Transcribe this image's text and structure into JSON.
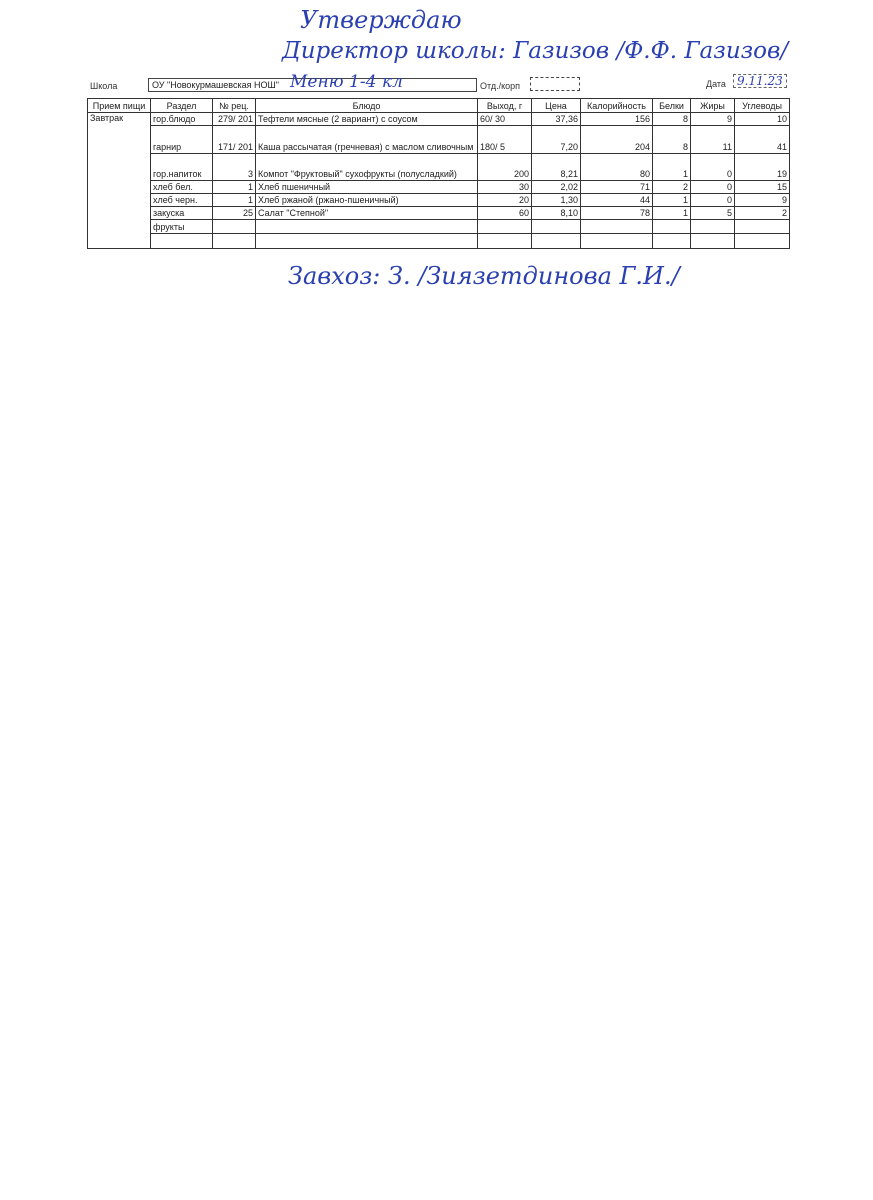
{
  "approval": {
    "title": "Утверждаю",
    "director_line": "Директор школы: Газизов /Ф.Ф. Газизов/"
  },
  "header": {
    "school_label": "Школа",
    "school_value": "ОУ \"Новокурмашевская НОШ\"",
    "menu_note": "Меню 1-4 кл",
    "dept_label": "Отд./корп",
    "dept_value": "",
    "date_label": "Дата",
    "date_value": "9.11.23"
  },
  "table": {
    "columns": [
      "Прием пищи",
      "Раздел",
      "№ рец.",
      "Блюдо",
      "Выход, г",
      "Цена",
      "Калорийность",
      "Белки",
      "Жиры",
      "Углеводы"
    ],
    "meal": "Завтрак",
    "rows": [
      [
        "гор.блюдо",
        "279/ 201",
        "Тефтели мясные (2 вариант) с соусом",
        "60/ 30",
        "37,36",
        "156",
        "8",
        "9",
        "10"
      ],
      [
        "гарнир",
        "171/ 201",
        "Каша рассычатая (гречневая) с маслом сливочным",
        "180/ 5",
        "7,20",
        "204",
        "8",
        "11",
        "41"
      ],
      [
        "гор.напиток",
        "3",
        "Компот \"Фруктовый\" сухофрукты (полусладкий)",
        "200",
        "8,21",
        "80",
        "1",
        "0",
        "19"
      ],
      [
        "хлеб бел.",
        "1",
        "Хлеб пшеничный",
        "30",
        "2,02",
        "71",
        "2",
        "0",
        "15"
      ],
      [
        "хлеб черн.",
        "1",
        "Хлеб ржаной (ржано-пшеничный)",
        "20",
        "1,30",
        "44",
        "1",
        "0",
        "9"
      ],
      [
        "закуска",
        "25",
        "Салат \"Степной\"",
        "60",
        "8,10",
        "78",
        "1",
        "5",
        "2"
      ],
      [
        "фрукты",
        "",
        "",
        "",
        "",
        "",
        "",
        "",
        ""
      ],
      [
        "",
        "",
        "",
        "",
        "",
        "",
        "",
        "",
        ""
      ]
    ]
  },
  "footer": {
    "storekeeper_line": "Завхоз: З. /Зиязетдинова Г.И./"
  }
}
